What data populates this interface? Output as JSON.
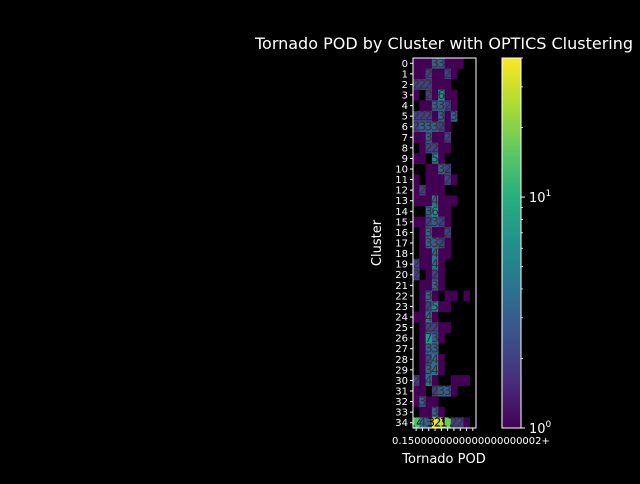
{
  "chart_data": {
    "type": "heatmap",
    "title": "Tornado POD by Cluster with OPTICS Clustering",
    "xlabel": "Tornado POD",
    "ylabel": "Cluster",
    "x_categories": [
      "0.15",
      "0.2",
      "0.3",
      "0.4",
      "0.5",
      "0.6",
      "0.8",
      "1.0",
      "1.2",
      "2+"
    ],
    "xtick_text": "0.1500000000000000000002+",
    "y_categories": [
      "0",
      "1",
      "2",
      "3",
      "4",
      "5",
      "6",
      "7",
      "8",
      "9",
      "10",
      "11",
      "12",
      "13",
      "14",
      "15",
      "16",
      "17",
      "18",
      "19",
      "20",
      "21",
      "22",
      "23",
      "24",
      "25",
      "26",
      "27",
      "28",
      "29",
      "30",
      "31",
      "32",
      "33",
      "34"
    ],
    "colorbar": {
      "scale": "log",
      "range": [
        1,
        40
      ],
      "ticks": [
        {
          "value": 1,
          "label": "10⁰"
        },
        {
          "value": 10,
          "label": "10¹"
        }
      ],
      "colormap": "viridis"
    },
    "values": [
      [
        1,
        1,
        1,
        3,
        3,
        1,
        1,
        1,
        0,
        0
      ],
      [
        1,
        1,
        2,
        1,
        1,
        2,
        1,
        0,
        0,
        0
      ],
      [
        2,
        2,
        2,
        1,
        1,
        1,
        0,
        0,
        0,
        0
      ],
      [
        1,
        0,
        2,
        1,
        6,
        1,
        1,
        0,
        0,
        0
      ],
      [
        0,
        1,
        1,
        3,
        3,
        2,
        1,
        0,
        0,
        0
      ],
      [
        2,
        2,
        2,
        1,
        3,
        1,
        3,
        0,
        0,
        0
      ],
      [
        2,
        3,
        3,
        3,
        2,
        1,
        0,
        0,
        0,
        0
      ],
      [
        1,
        1,
        3,
        1,
        1,
        2,
        0,
        0,
        0,
        0
      ],
      [
        0,
        1,
        2,
        2,
        1,
        1,
        0,
        0,
        0,
        0
      ],
      [
        1,
        1,
        0,
        5,
        1,
        0,
        0,
        0,
        0,
        0
      ],
      [
        0,
        0,
        1,
        1,
        3,
        2,
        0,
        0,
        0,
        0
      ],
      [
        1,
        0,
        1,
        1,
        1,
        2,
        1,
        0,
        0,
        0
      ],
      [
        1,
        2,
        1,
        1,
        1,
        0,
        0,
        0,
        0,
        0
      ],
      [
        1,
        1,
        1,
        4,
        1,
        1,
        1,
        0,
        0,
        0
      ],
      [
        0,
        0,
        3,
        6,
        1,
        1,
        0,
        0,
        0,
        0
      ],
      [
        1,
        1,
        2,
        3,
        2,
        1,
        0,
        0,
        0,
        0
      ],
      [
        0,
        1,
        3,
        1,
        1,
        2,
        0,
        0,
        0,
        0
      ],
      [
        0,
        1,
        3,
        3,
        2,
        1,
        0,
        0,
        0,
        0
      ],
      [
        0,
        1,
        1,
        4,
        1,
        1,
        0,
        0,
        0,
        0
      ],
      [
        2,
        1,
        1,
        4,
        1,
        0,
        0,
        0,
        0,
        0
      ],
      [
        2,
        0,
        1,
        2,
        1,
        0,
        0,
        0,
        0,
        0
      ],
      [
        0,
        1,
        1,
        3,
        1,
        0,
        0,
        0,
        0,
        0
      ],
      [
        0,
        1,
        3,
        1,
        0,
        1,
        1,
        0,
        1,
        0
      ],
      [
        0,
        1,
        2,
        5,
        1,
        1,
        0,
        0,
        0,
        0
      ],
      [
        1,
        1,
        4,
        1,
        0,
        0,
        0,
        0,
        0,
        0
      ],
      [
        0,
        1,
        2,
        2,
        1,
        1,
        0,
        0,
        0,
        0
      ],
      [
        0,
        1,
        7,
        3,
        1,
        0,
        0,
        0,
        0,
        0
      ],
      [
        0,
        1,
        3,
        3,
        0,
        0,
        0,
        0,
        0,
        0
      ],
      [
        0,
        1,
        2,
        4,
        1,
        0,
        0,
        0,
        0,
        0
      ],
      [
        0,
        1,
        3,
        4,
        1,
        0,
        0,
        0,
        0,
        0
      ],
      [
        2,
        1,
        4,
        1,
        0,
        0,
        1,
        1,
        1,
        0
      ],
      [
        1,
        1,
        0,
        2,
        3,
        3,
        1,
        0,
        0,
        0
      ],
      [
        1,
        3,
        1,
        1,
        0,
        0,
        0,
        0,
        0,
        0
      ],
      [
        0,
        1,
        1,
        3,
        1,
        0,
        0,
        0,
        0,
        0
      ],
      [
        14,
        4,
        3,
        37,
        29,
        17,
        2,
        2,
        1,
        0
      ]
    ]
  }
}
